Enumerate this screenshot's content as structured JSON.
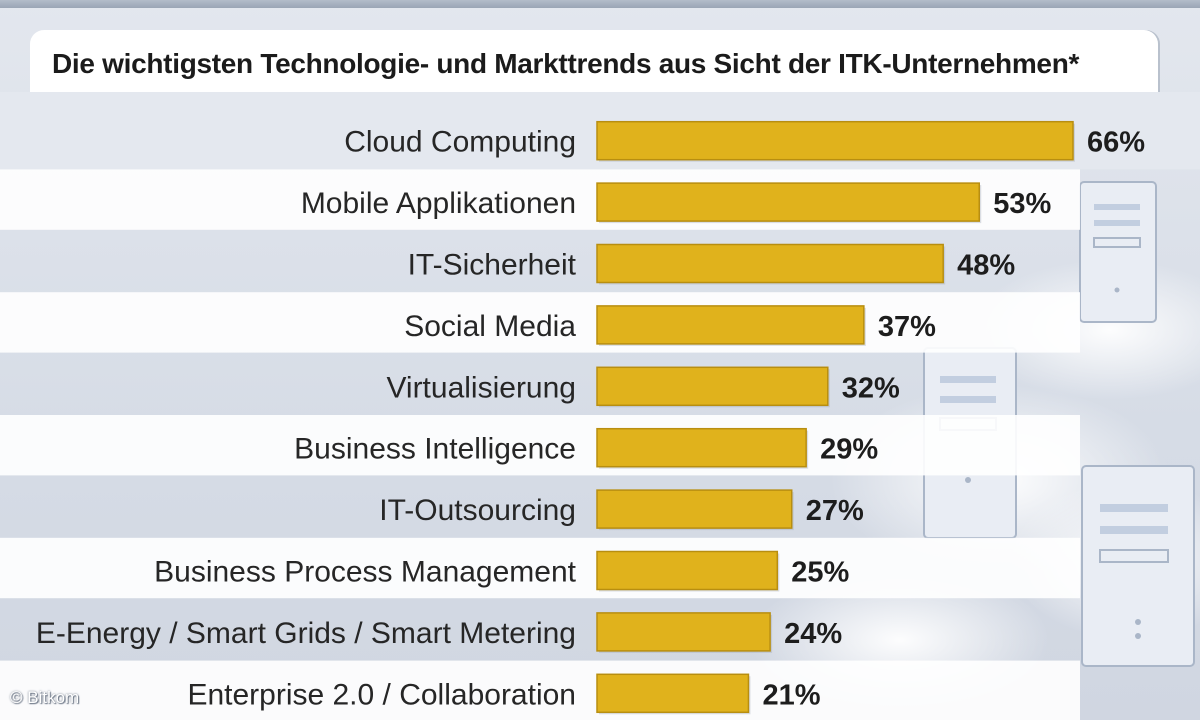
{
  "chart_data": {
    "type": "bar",
    "orientation": "horizontal",
    "title": "Die wichtigsten Technologie- und Markttrends aus Sicht der ITK-Unternehmen*",
    "categories": [
      "Cloud Computing",
      "Mobile Applikationen",
      "IT-Sicherheit",
      "Social Media",
      "Virtualisierung",
      "Business Intelligence",
      "IT-Outsourcing",
      "Business Process Management",
      "E-Energy / Smart Grids / Smart Metering",
      "Enterprise 2.0 / Collaboration"
    ],
    "values": [
      66,
      53,
      48,
      37,
      32,
      29,
      27,
      25,
      24,
      21
    ],
    "value_labels": [
      "66%",
      "53%",
      "48%",
      "37%",
      "32%",
      "29%",
      "27%",
      "25%",
      "24%",
      "21%"
    ],
    "unit": "%",
    "xlim": [
      0,
      66
    ],
    "grid": false,
    "legend": "none"
  },
  "credit": "© Bitkom",
  "colors": {
    "bar": "#e0b21c",
    "bar_edge": "#b88e10",
    "row_band": "#ffffff",
    "background": "#dde2ea"
  }
}
